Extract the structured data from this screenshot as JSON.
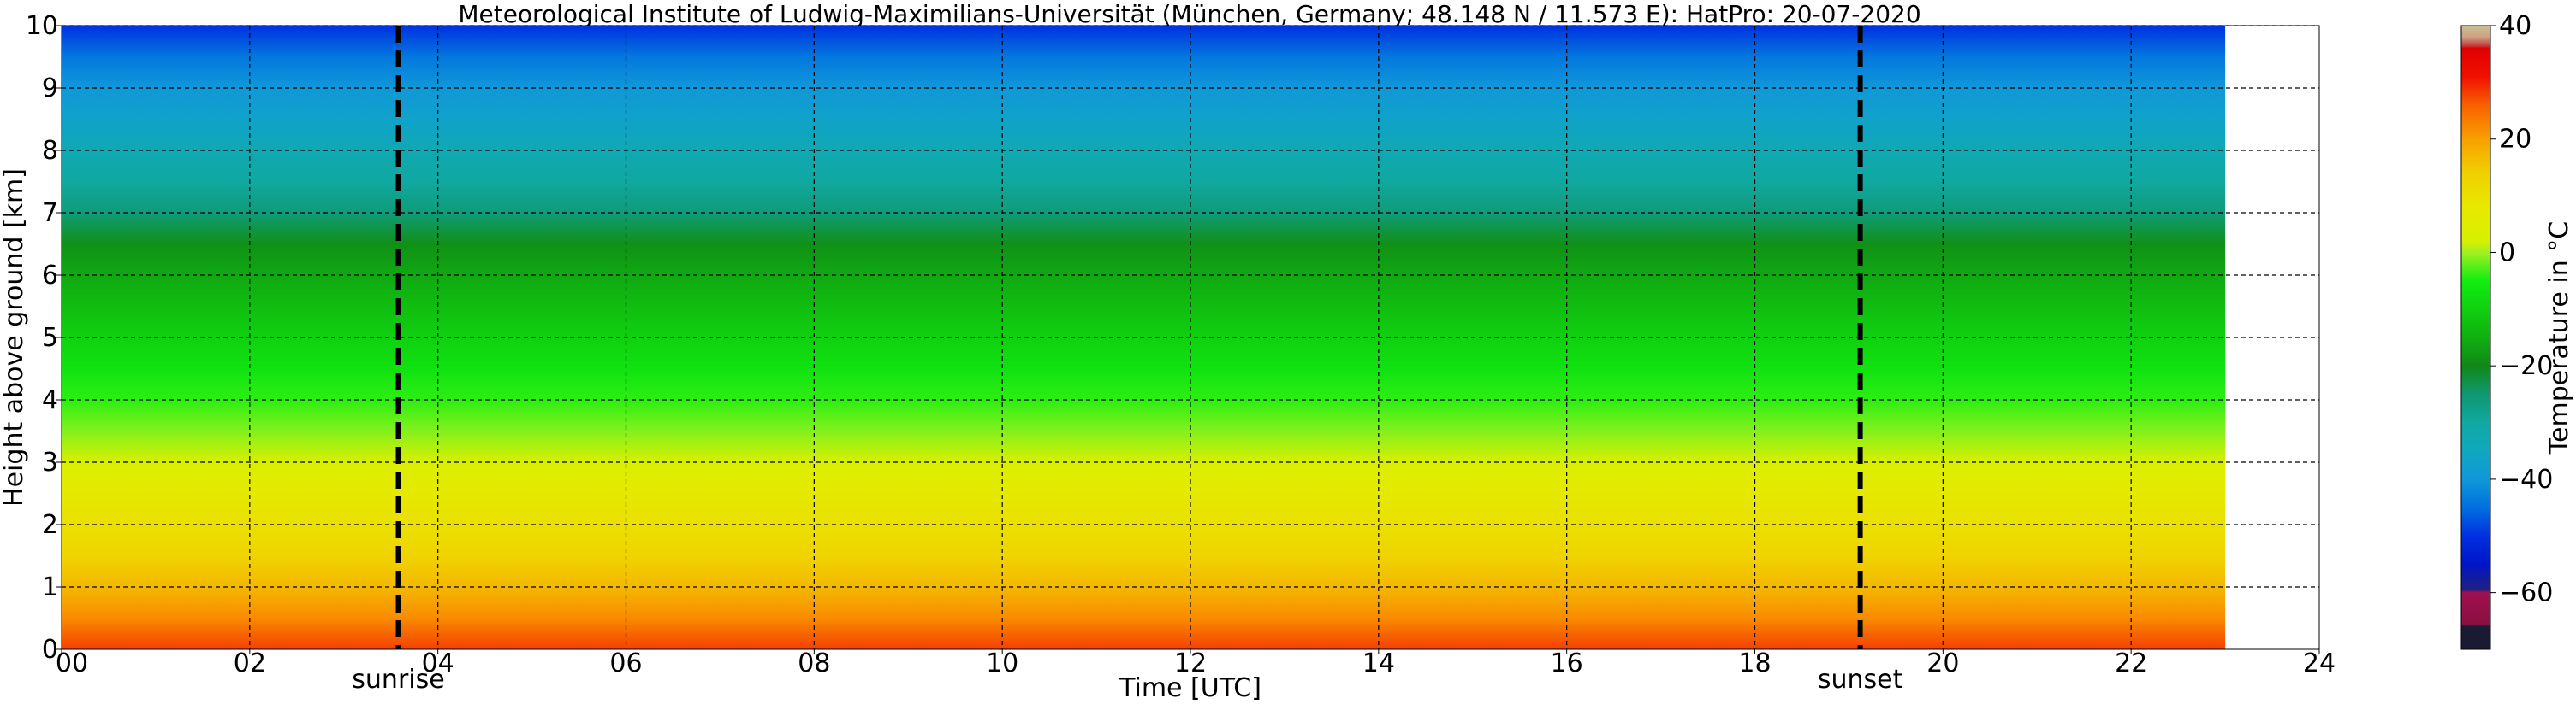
{
  "chart_data": {
    "type": "heatmap",
    "title": "Meteorological Institute of Ludwig-Maximilians-Universität (München, Germany; 48.148 N / 11.573 E):    HatPro: 20-07-2020",
    "xlabel": "Time [UTC]",
    "ylabel": "Height above ground [km]",
    "xlim": [
      0,
      24
    ],
    "ylim": [
      0,
      10
    ],
    "x_ticks": [
      "00",
      "02",
      "04",
      "06",
      "08",
      "10",
      "12",
      "14",
      "16",
      "18",
      "20",
      "22",
      "24"
    ],
    "y_ticks": [
      "0",
      "1",
      "2",
      "3",
      "4",
      "5",
      "6",
      "7",
      "8",
      "9",
      "10"
    ],
    "data_x_end": 23.0,
    "grid": true,
    "colorbar": {
      "label": "Temperature in °C",
      "range": [
        -70,
        40
      ],
      "ticks": [
        "−60",
        "−40",
        "−20",
        "0",
        "20",
        "40"
      ]
    },
    "annotations": [
      {
        "label": "sunrise",
        "x": 3.58
      },
      {
        "label": "sunset",
        "x": 19.12
      }
    ],
    "temperature_profile": {
      "heights_km": [
        0,
        0.5,
        1,
        1.5,
        2,
        2.5,
        3,
        3.5,
        4,
        4.5,
        5,
        5.5,
        6,
        6.5,
        7,
        7.5,
        8,
        8.5,
        9,
        9.5,
        10
      ],
      "temperature_c": [
        28,
        22,
        17,
        13,
        10,
        7,
        3,
        -1,
        -4,
        -7,
        -10,
        -13,
        -16,
        -19,
        -26,
        -30,
        -33,
        -37,
        -40,
        -44,
        -50
      ]
    }
  }
}
